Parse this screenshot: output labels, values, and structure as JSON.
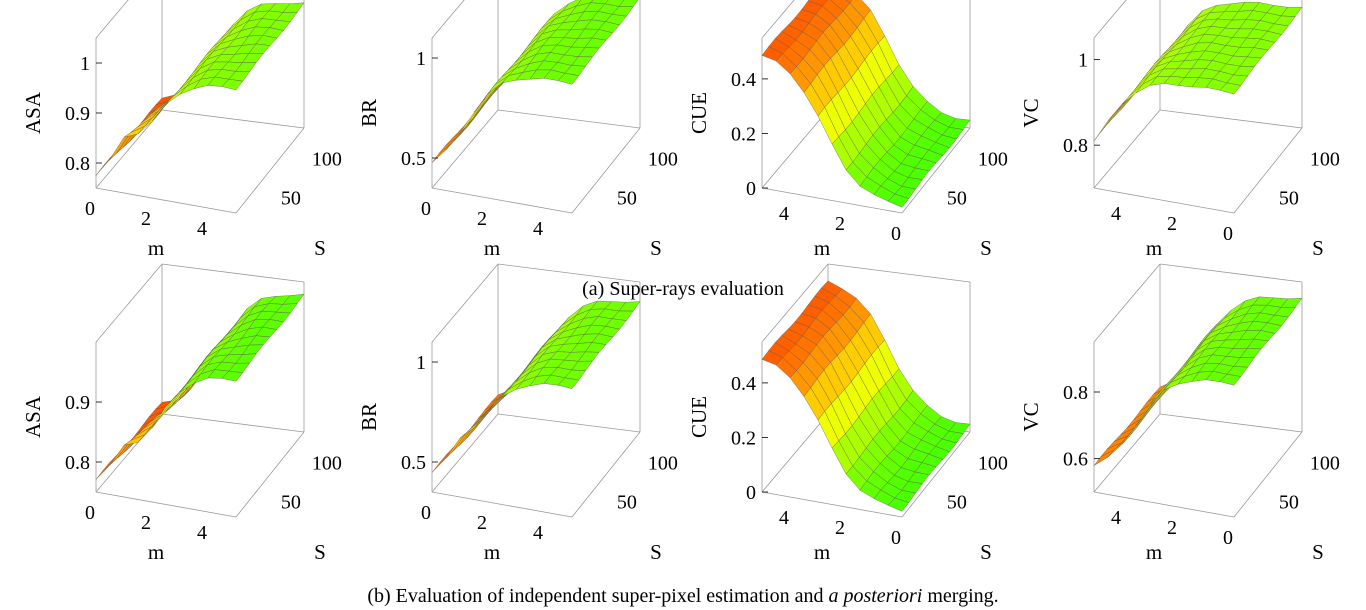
{
  "captions": {
    "a": "(a) Super-rays evaluation",
    "b_pre": "(b) Evaluation of independent super-pixel estimation and ",
    "b_em": "a posteriori",
    "b_post": " merging."
  },
  "chart_data": [
    {
      "id": "a1",
      "type": "surface3d",
      "zlabel": "ASA",
      "xlabel": "m",
      "ylabel": "S",
      "xlim": [
        0,
        5
      ],
      "xticks": [
        0,
        2,
        4
      ],
      "yticks": [
        50,
        100
      ],
      "zticks": [
        0.8,
        0.9,
        1
      ],
      "zlim": [
        0.75,
        1.05
      ],
      "value_model": {
        "lo": 0.76,
        "hi": 1.0,
        "mid_m": 1.8,
        "peak": 0.05
      },
      "color_direction": "high-green"
    },
    {
      "id": "a2",
      "type": "surface3d",
      "zlabel": "BR",
      "xlabel": "m",
      "ylabel": "S",
      "xlim": [
        0,
        5
      ],
      "xticks": [
        0,
        2,
        4
      ],
      "yticks": [
        50,
        100
      ],
      "zticks": [
        0.5,
        1
      ],
      "zlim": [
        0.35,
        1.1
      ],
      "value_model": {
        "lo": 0.4,
        "hi": 1.0,
        "mid_m": 1.2,
        "peak": 0.0
      },
      "color_direction": "high-green"
    },
    {
      "id": "a3",
      "type": "surface3d",
      "zlabel": "CUE",
      "xlabel": "m",
      "ylabel": "S",
      "xlim": [
        5,
        0
      ],
      "xticks": [
        4,
        2,
        0
      ],
      "yticks": [
        50,
        100
      ],
      "zticks": [
        0,
        0.2,
        0.4
      ],
      "zlim": [
        0,
        0.55
      ],
      "value_model": {
        "lo": 0.02,
        "hi": 0.5,
        "mid_m": 2.2,
        "peak": 0.0
      },
      "color_direction": "high-red"
    },
    {
      "id": "a4",
      "type": "surface3d",
      "zlabel": "VC",
      "xlabel": "m",
      "ylabel": "S",
      "xlim": [
        5,
        0
      ],
      "xticks": [
        4,
        2,
        0
      ],
      "yticks": [
        50,
        100
      ],
      "zticks": [
        0.8,
        1
      ],
      "zlim": [
        0.7,
        1.05
      ],
      "value_model": {
        "lo": 0.72,
        "hi": 0.98,
        "mid_m": 0.4,
        "peak": 0.0
      },
      "color_direction": "high-green"
    },
    {
      "id": "b1",
      "type": "surface3d",
      "zlabel": "ASA",
      "xlabel": "m",
      "ylabel": "S",
      "xlim": [
        0,
        5
      ],
      "xticks": [
        0,
        2,
        4
      ],
      "yticks": [
        50,
        100
      ],
      "zticks": [
        0.8,
        0.9
      ],
      "zlim": [
        0.75,
        1.0
      ],
      "value_model": {
        "lo": 0.76,
        "hi": 0.98,
        "mid_m": 2.0,
        "peak": 0.04
      },
      "color_direction": "high-green"
    },
    {
      "id": "b2",
      "type": "surface3d",
      "zlabel": "BR",
      "xlabel": "m",
      "ylabel": "S",
      "xlim": [
        0,
        5
      ],
      "xticks": [
        0,
        2,
        4
      ],
      "yticks": [
        50,
        100
      ],
      "zticks": [
        0.5,
        1
      ],
      "zlim": [
        0.35,
        1.1
      ],
      "value_model": {
        "lo": 0.4,
        "hi": 1.0,
        "mid_m": 1.6,
        "peak": 0.08
      },
      "color_direction": "high-green"
    },
    {
      "id": "b3",
      "type": "surface3d",
      "zlabel": "CUE",
      "xlabel": "m",
      "ylabel": "S",
      "xlim": [
        5,
        0
      ],
      "xticks": [
        4,
        2,
        0
      ],
      "yticks": [
        50,
        100
      ],
      "zticks": [
        0,
        0.2,
        0.4
      ],
      "zlim": [
        0,
        0.55
      ],
      "value_model": {
        "lo": 0.02,
        "hi": 0.5,
        "mid_m": 2.2,
        "peak": 0.0
      },
      "color_direction": "high-red"
    },
    {
      "id": "b4",
      "type": "surface3d",
      "zlabel": "VC",
      "xlabel": "m",
      "ylabel": "S",
      "xlim": [
        5,
        0
      ],
      "xticks": [
        4,
        2,
        0
      ],
      "yticks": [
        50,
        100
      ],
      "zticks": [
        0.6,
        0.8
      ],
      "zlim": [
        0.5,
        0.95
      ],
      "value_model": {
        "lo": 0.55,
        "hi": 0.9,
        "mid_m": 1.5,
        "peak": 0.0
      },
      "color_direction": "high-green"
    }
  ]
}
